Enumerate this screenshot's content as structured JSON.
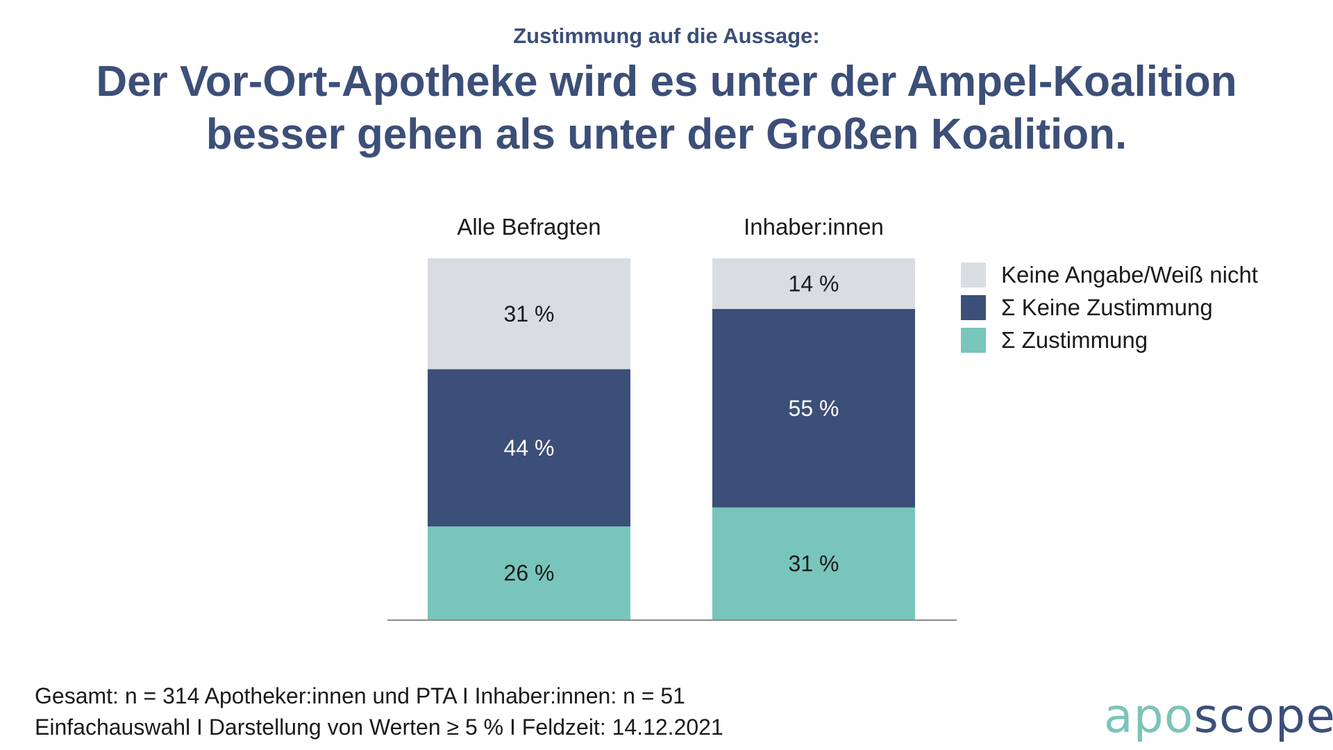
{
  "header": {
    "subtitle": "Zustimmung auf die Aussage:",
    "title": "Der Vor-Ort-Apotheke wird es unter der Ampel-Koalition besser gehen als unter der Großen Koalition."
  },
  "colors": {
    "title": "#3c4f78",
    "no_answer": "#d9dce1",
    "no_agreement": "#3c4f78",
    "agreement": "#78c5bb",
    "axis": "#8a8a8a"
  },
  "chart_data": {
    "type": "bar",
    "stacked": true,
    "percent_scale": true,
    "categories": [
      "Alle Befragten",
      "Inhaber:innen"
    ],
    "series": [
      {
        "name": "Σ Zustimmung",
        "values": [
          26,
          31
        ],
        "labels": [
          "26 %",
          "31 %"
        ],
        "color": "#78c5bb",
        "label_color": "#1a1a1a"
      },
      {
        "name": "Σ Keine Zustimmung",
        "values": [
          44,
          55
        ],
        "labels": [
          "44 %",
          "55 %"
        ],
        "color": "#3c4f78",
        "label_color": "#ffffff"
      },
      {
        "name": "Keine Angabe/Weiß nicht",
        "values": [
          31,
          14
        ],
        "labels": [
          "31 %",
          "14 %"
        ],
        "color": "#d9dce1",
        "label_color": "#1a1a1a"
      }
    ],
    "ylim": [
      0,
      100
    ],
    "grid": false,
    "legend_position": "right"
  },
  "legend": {
    "items": [
      {
        "label": "Keine Angabe/Weiß nicht",
        "color": "#d9dce1"
      },
      {
        "label": "Σ Keine Zustimmung",
        "color": "#3c4f78"
      },
      {
        "label": "Σ Zustimmung",
        "color": "#78c5bb"
      }
    ]
  },
  "footnote": {
    "line1": "Gesamt: n = 314 Apotheker:innen und PTA I Inhaber:innen: n = 51",
    "line2": "Einfachauswahl I Darstellung von Werten ≥ 5 % I Feldzeit: 14.12.2021"
  },
  "logo": {
    "part1": "apo",
    "part2": "scope"
  }
}
